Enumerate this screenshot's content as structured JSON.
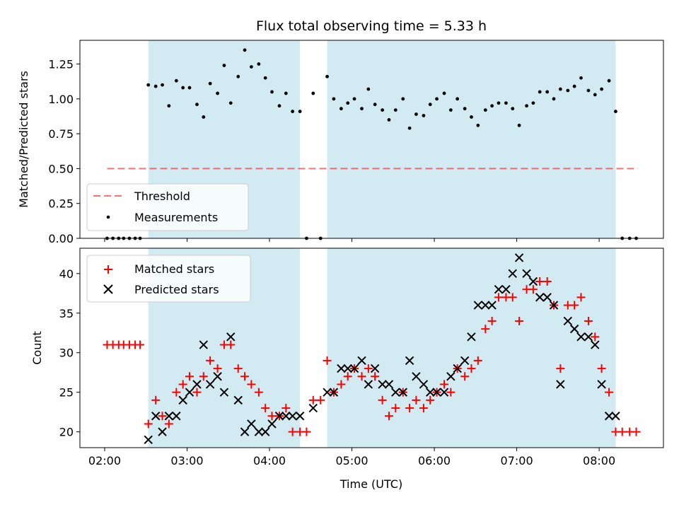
{
  "chart_data": {
    "title": "Flux total observing time = 5.33 h",
    "xlabel": "Time (UTC)",
    "xlim": [
      1.7,
      8.78
    ],
    "x_ticks": [
      2,
      3,
      4,
      5,
      6,
      7,
      8
    ],
    "x_tick_labels": [
      "02:00",
      "03:00",
      "04:00",
      "05:00",
      "06:00",
      "07:00",
      "08:00"
    ],
    "shaded_intervals": [
      [
        2.53,
        4.37
      ],
      [
        4.7,
        8.2
      ]
    ],
    "shade_color": "#add8e6",
    "panels": [
      {
        "type": "scatter",
        "ylabel": "Matched/Predicted stars",
        "ylim": [
          0,
          1.42
        ],
        "y_ticks": [
          0,
          0.25,
          0.5,
          0.75,
          1.0,
          1.25
        ],
        "y_tick_labels": [
          "0.00",
          "0.25",
          "0.50",
          "0.75",
          "1.00",
          "1.25"
        ],
        "legend": {
          "position": "lower-left"
        },
        "threshold": {
          "name": "Threshold",
          "value": 0.5,
          "x_range": [
            2.03,
            8.47
          ],
          "color": "#ff0000",
          "style": "dashed"
        },
        "series": [
          {
            "name": "Measurements",
            "marker": "dot",
            "color": "#000000",
            "x": [
              2.03,
              2.1,
              2.17,
              2.23,
              2.3,
              2.37,
              2.43,
              2.53,
              2.62,
              2.7,
              2.78,
              2.87,
              2.95,
              3.03,
              3.12,
              3.2,
              3.28,
              3.37,
              3.45,
              3.53,
              3.62,
              3.7,
              3.78,
              3.87,
              3.95,
              4.03,
              4.12,
              4.2,
              4.28,
              4.37,
              4.45,
              4.53,
              4.62,
              4.7,
              4.78,
              4.87,
              4.95,
              5.03,
              5.12,
              5.2,
              5.28,
              5.37,
              5.45,
              5.53,
              5.62,
              5.7,
              5.78,
              5.87,
              5.95,
              6.03,
              6.12,
              6.2,
              6.28,
              6.37,
              6.45,
              6.53,
              6.62,
              6.7,
              6.78,
              6.87,
              6.95,
              7.03,
              7.12,
              7.2,
              7.28,
              7.37,
              7.45,
              7.53,
              7.62,
              7.7,
              7.78,
              7.87,
              7.95,
              8.03,
              8.12,
              8.2,
              8.28,
              8.37,
              8.45
            ],
            "y": [
              0,
              0,
              0,
              0,
              0,
              0,
              0,
              1.1,
              1.09,
              1.1,
              0.95,
              1.13,
              1.08,
              1.08,
              0.96,
              0.87,
              1.11,
              1.04,
              1.24,
              0.97,
              1.16,
              1.35,
              1.23,
              1.25,
              1.15,
              1.05,
              0.95,
              1.04,
              0.91,
              0.91,
              0,
              1.04,
              0,
              1.16,
              1.0,
              0.93,
              0.97,
              1.0,
              0.93,
              1.07,
              0.96,
              0.92,
              0.85,
              0.92,
              1.0,
              0.79,
              0.89,
              0.88,
              0.96,
              1.0,
              1.04,
              0.92,
              1.0,
              0.93,
              0.87,
              0.81,
              0.92,
              0.95,
              0.97,
              0.97,
              0.93,
              0.81,
              0.95,
              0.97,
              1.05,
              1.05,
              1.0,
              1.07,
              1.06,
              1.09,
              1.15,
              1.06,
              1.03,
              1.07,
              1.13,
              0.91,
              0,
              0,
              0
            ]
          }
        ]
      },
      {
        "type": "scatter",
        "ylabel": "Count",
        "ylim": [
          18,
          43.2
        ],
        "y_ticks": [
          20,
          25,
          30,
          35,
          40
        ],
        "y_tick_labels": [
          "20",
          "25",
          "30",
          "35",
          "40"
        ],
        "legend": {
          "position": "upper-left"
        },
        "series": [
          {
            "name": "Matched stars",
            "marker": "plus",
            "color": "#ff0000",
            "x": [
              2.03,
              2.1,
              2.17,
              2.23,
              2.3,
              2.37,
              2.43,
              2.53,
              2.62,
              2.7,
              2.78,
              2.87,
              2.95,
              3.03,
              3.12,
              3.2,
              3.28,
              3.37,
              3.45,
              3.53,
              3.62,
              3.7,
              3.78,
              3.87,
              3.95,
              4.03,
              4.12,
              4.2,
              4.28,
              4.37,
              4.45,
              4.53,
              4.62,
              4.7,
              4.78,
              4.87,
              4.95,
              5.03,
              5.12,
              5.2,
              5.28,
              5.37,
              5.45,
              5.53,
              5.62,
              5.7,
              5.78,
              5.87,
              5.95,
              6.03,
              6.12,
              6.2,
              6.28,
              6.37,
              6.45,
              6.53,
              6.62,
              6.7,
              6.78,
              6.87,
              6.95,
              7.03,
              7.12,
              7.2,
              7.28,
              7.37,
              7.45,
              7.53,
              7.62,
              7.7,
              7.78,
              7.87,
              7.95,
              8.03,
              8.12,
              8.2,
              8.28,
              8.37,
              8.45
            ],
            "y": [
              31,
              31,
              31,
              31,
              31,
              31,
              31,
              21,
              24,
              22,
              21,
              25,
              26,
              27,
              25,
              27,
              29,
              28,
              31,
              31,
              28,
              27,
              26,
              25,
              23,
              22,
              22,
              23,
              20,
              20,
              20,
              24,
              24,
              29,
              25,
              26,
              27,
              28,
              27,
              28,
              27,
              24,
              22,
              23,
              25,
              23,
              24,
              23,
              24,
              25,
              26,
              25,
              28,
              27,
              28,
              29,
              33,
              34,
              37,
              37,
              37,
              34,
              38,
              38,
              39,
              39,
              36,
              28,
              36,
              36,
              37,
              34,
              32,
              28,
              25,
              20,
              20,
              20,
              20
            ]
          },
          {
            "name": "Predicted stars",
            "marker": "x",
            "color": "#000000",
            "x": [
              2.53,
              2.62,
              2.7,
              2.78,
              2.87,
              2.95,
              3.03,
              3.12,
              3.2,
              3.28,
              3.37,
              3.45,
              3.53,
              3.62,
              3.7,
              3.78,
              3.87,
              3.95,
              4.03,
              4.12,
              4.2,
              4.28,
              4.37,
              4.53,
              4.7,
              4.78,
              4.87,
              4.95,
              5.03,
              5.12,
              5.2,
              5.28,
              5.37,
              5.45,
              5.53,
              5.62,
              5.7,
              5.78,
              5.87,
              5.95,
              6.03,
              6.12,
              6.2,
              6.28,
              6.37,
              6.45,
              6.53,
              6.62,
              6.7,
              6.78,
              6.87,
              6.95,
              7.03,
              7.12,
              7.2,
              7.28,
              7.37,
              7.45,
              7.53,
              7.62,
              7.7,
              7.78,
              7.87,
              7.95,
              8.03,
              8.12,
              8.2
            ],
            "y": [
              19,
              22,
              20,
              22,
              22,
              24,
              25,
              26,
              31,
              26,
              27,
              25,
              32,
              24,
              20,
              21,
              20,
              20,
              21,
              22,
              22,
              22,
              22,
              23,
              25,
              25,
              28,
              28,
              28,
              29,
              26,
              28,
              26,
              26,
              25,
              25,
              29,
              27,
              26,
              25,
              25,
              25,
              27,
              28,
              29,
              32,
              36,
              36,
              36,
              38,
              38,
              40,
              42,
              40,
              39,
              37,
              37,
              36,
              26,
              34,
              33,
              32,
              32,
              31,
              26,
              22,
              22
            ]
          }
        ]
      }
    ]
  }
}
